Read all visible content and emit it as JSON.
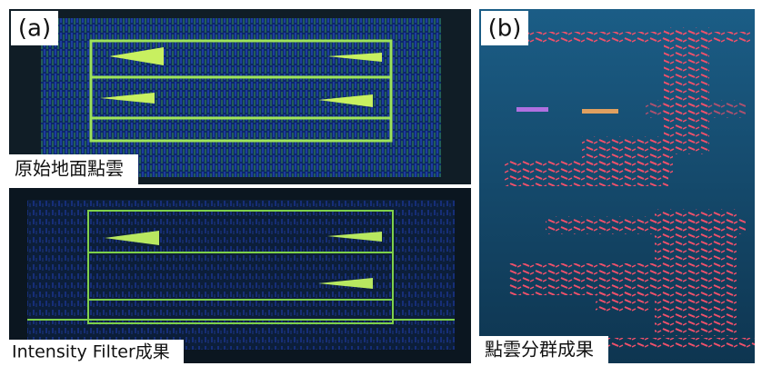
{
  "panel_a": {
    "label": "(a)",
    "top_caption": "原始地面點雲",
    "bottom_caption": "Intensity Filter成果"
  },
  "panel_b": {
    "label": "(b)",
    "caption": "點雲分群成果"
  }
}
